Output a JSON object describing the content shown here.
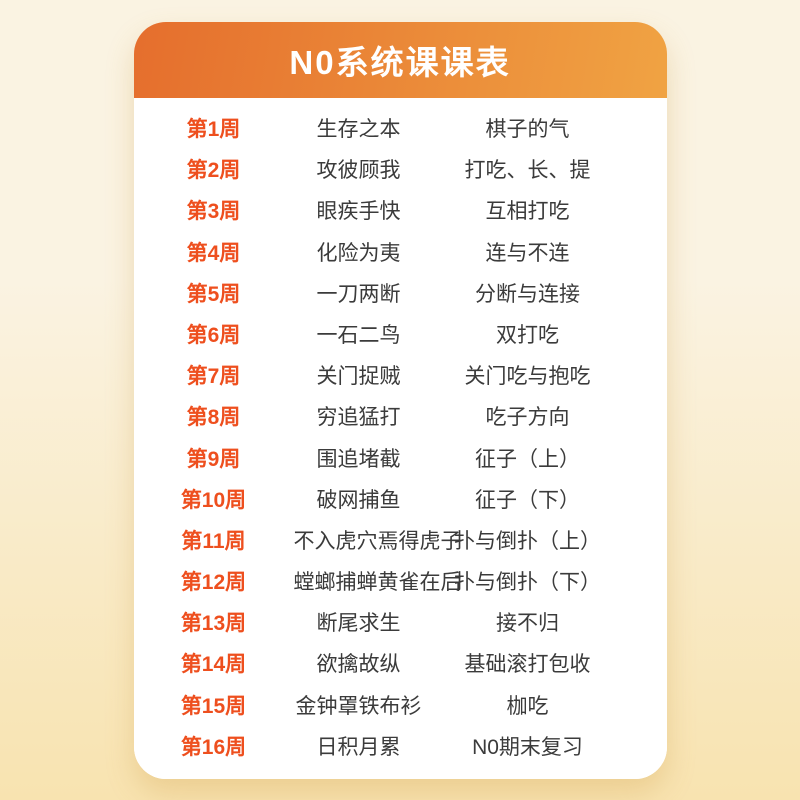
{
  "page": {
    "background_top_color": "#faf3e2",
    "background_bottom_color": "#f8e3b0"
  },
  "card": {
    "title": "N0系统课课表",
    "header_gradient_left": "#e56e2d",
    "header_gradient_right": "#f0a343",
    "week_label_color": "#ee4f1e",
    "text_color": "#3b3b3b",
    "background_color": "#ffffff"
  },
  "schedule": {
    "columns": [
      "week",
      "course",
      "topic"
    ],
    "rows": [
      {
        "week": "第1周",
        "course": "生存之本",
        "topic": "棋子的气"
      },
      {
        "week": "第2周",
        "course": "攻彼顾我",
        "topic": "打吃、长、提"
      },
      {
        "week": "第3周",
        "course": "眼疾手快",
        "topic": "互相打吃"
      },
      {
        "week": "第4周",
        "course": "化险为夷",
        "topic": "连与不连"
      },
      {
        "week": "第5周",
        "course": "一刀两断",
        "topic": "分断与连接"
      },
      {
        "week": "第6周",
        "course": "一石二鸟",
        "topic": "双打吃"
      },
      {
        "week": "第7周",
        "course": "关门捉贼",
        "topic": "关门吃与抱吃"
      },
      {
        "week": "第8周",
        "course": "穷追猛打",
        "topic": "吃子方向"
      },
      {
        "week": "第9周",
        "course": "围追堵截",
        "topic": "征子（上）"
      },
      {
        "week": "第10周",
        "course": "破网捕鱼",
        "topic": "征子（下）"
      },
      {
        "week": "第11周",
        "course": "不入虎穴焉得虎子",
        "topic": "扑与倒扑（上）"
      },
      {
        "week": "第12周",
        "course": "螳螂捕蝉黄雀在后",
        "topic": "扑与倒扑（下）"
      },
      {
        "week": "第13周",
        "course": "断尾求生",
        "topic": "接不归"
      },
      {
        "week": "第14周",
        "course": "欲擒故纵",
        "topic": "基础滚打包收"
      },
      {
        "week": "第15周",
        "course": "金钟罩铁布衫",
        "topic": "枷吃"
      },
      {
        "week": "第16周",
        "course": "日积月累",
        "topic": "N0期末复习"
      }
    ]
  }
}
